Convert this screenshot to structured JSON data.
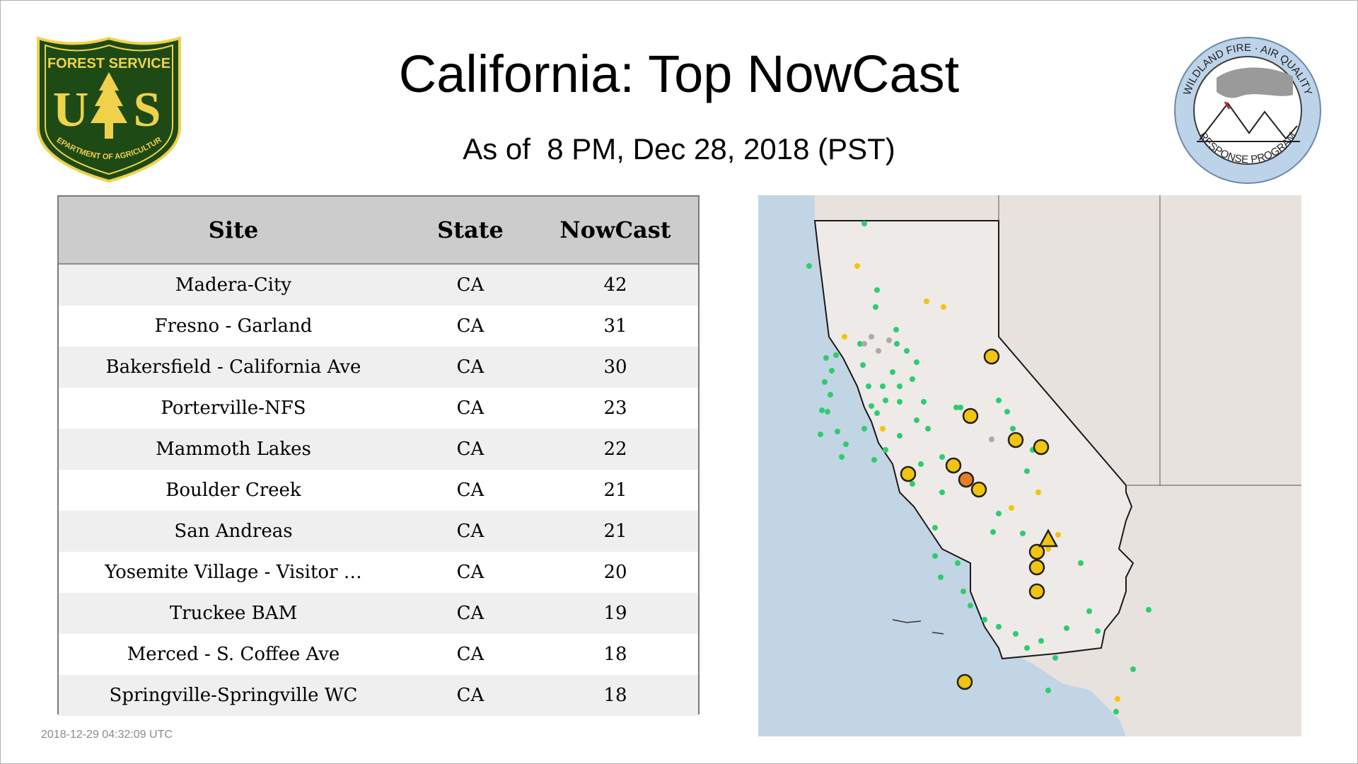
{
  "header": {
    "title": "California: Top NowCast",
    "subtitle": "As of  8 PM, Dec 28, 2018 (PST)"
  },
  "logos": {
    "left": {
      "text_top": "FOREST SERVICE",
      "text_letters": "U S",
      "text_bottom": "DEPARTMENT OF AGRICULTURE",
      "colors": {
        "green": "#1e4a16",
        "gold": "#f0d24a"
      }
    },
    "right": {
      "text_top": "WILDLAND FIRE · AIR QUALITY",
      "text_bottom": "RESPONSE PROGRAM",
      "colors": {
        "ring": "#bcd3ea",
        "smoke": "#9a9a9a"
      }
    }
  },
  "table": {
    "columns": [
      "Site",
      "State",
      "NowCast"
    ],
    "rows": [
      [
        "Madera-City",
        "CA",
        "42"
      ],
      [
        "Fresno - Garland",
        "CA",
        "31"
      ],
      [
        "Bakersfield - California Ave",
        "CA",
        "30"
      ],
      [
        "Porterville-NFS",
        "CA",
        "23"
      ],
      [
        "Mammoth Lakes",
        "CA",
        "22"
      ],
      [
        "Boulder Creek",
        "CA",
        "21"
      ],
      [
        "San Andreas",
        "CA",
        "21"
      ],
      [
        "Yosemite Village - Visitor …",
        "CA",
        "20"
      ],
      [
        "Truckee BAM",
        "CA",
        "19"
      ],
      [
        "Merced - S. Coffee Ave",
        "CA",
        "18"
      ],
      [
        "Springville-Springville WC",
        "CA",
        "18"
      ]
    ]
  },
  "footer": {
    "timestamp": "2018-12-29 04:32:09 UTC"
  },
  "map": {
    "colors": {
      "ocean": "#c2d5e5",
      "land": "#ebe4e0",
      "california": "#ede7e3",
      "good": "#2ecc71",
      "moderate": "#f1c40f",
      "usg": "#e67e22",
      "no_data": "#aaaaaa"
    }
  }
}
